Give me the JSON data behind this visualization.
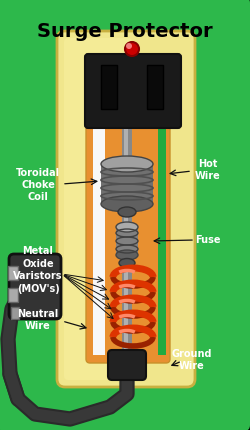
{
  "title": "Surge Protector",
  "bg_color": "#2db84b",
  "body_color": "#f0e68c",
  "outlet_color": "#1a1a1a",
  "led_color": "#cc0000",
  "label_color": "#ffffff",
  "title_color": "#000000",
  "labels": {
    "toroidal": "Toroidal\nChoke\nCoil",
    "mov": "Metal\nOxide\nVaristors\n(MOV's)",
    "neutral": "Neutral\nWire",
    "hot": "Hot\nWire",
    "fuse": "Fuse",
    "ground": "Ground\nWire"
  }
}
